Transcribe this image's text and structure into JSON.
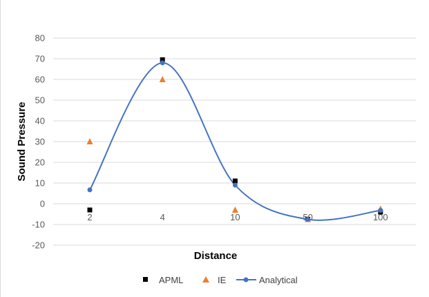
{
  "chart_data": {
    "type": "line",
    "title": "",
    "xlabel": "Distance",
    "ylabel": "Sound Pressure",
    "categories": [
      "2",
      "4",
      "10",
      "50",
      "100"
    ],
    "ylim": [
      -20,
      80
    ],
    "yticks": [
      "80",
      "70",
      "60",
      "50",
      "40",
      "30",
      "20",
      "10",
      "0",
      "-10",
      "-20"
    ],
    "grid": true,
    "legend_position": "bottom",
    "series": [
      {
        "name": "APML",
        "marker": "square",
        "color": "#000000",
        "line": false,
        "values": [
          -3,
          69.5,
          11,
          -7.5,
          -4
        ]
      },
      {
        "name": "IE",
        "marker": "triangle",
        "color": "#ed7d31",
        "line": false,
        "values": [
          30,
          60,
          -3,
          -7.5,
          -2.5
        ]
      },
      {
        "name": "Analytical",
        "marker": "circle",
        "color": "#4472c4",
        "line": true,
        "values": [
          6.7,
          68,
          9,
          -7.5,
          -3.2
        ]
      }
    ]
  }
}
